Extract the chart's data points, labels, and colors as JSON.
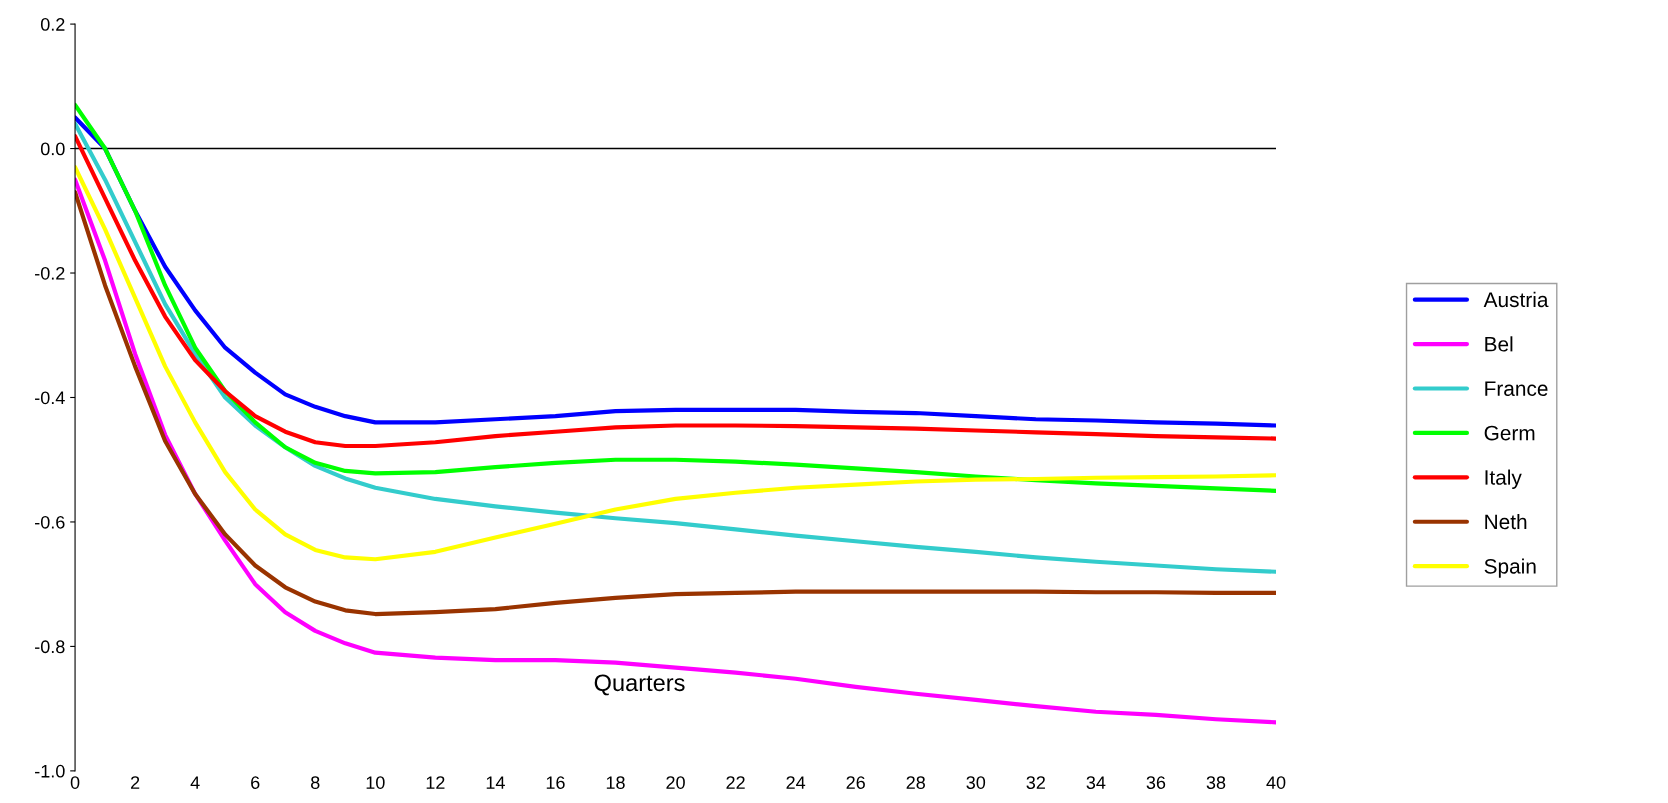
{
  "chart_data": {
    "type": "line",
    "xlabel": "Quarters",
    "x": [
      0,
      1,
      2,
      3,
      4,
      5,
      6,
      7,
      8,
      9,
      10,
      12,
      14,
      16,
      18,
      20,
      22,
      24,
      26,
      28,
      30,
      32,
      34,
      36,
      38,
      40
    ],
    "series": [
      {
        "name": "Austria",
        "color": "#0000ff",
        "values": [
          0.05,
          0.0,
          -0.1,
          -0.19,
          -0.26,
          -0.32,
          -0.36,
          -0.395,
          -0.415,
          -0.43,
          -0.44,
          -0.44,
          -0.435,
          -0.43,
          -0.422,
          -0.42,
          -0.42,
          -0.42,
          -0.423,
          -0.425,
          -0.43,
          -0.435,
          -0.437,
          -0.44,
          -0.442,
          -0.445
        ]
      },
      {
        "name": "Bel",
        "color": "#ff00ff",
        "values": [
          -0.05,
          -0.18,
          -0.33,
          -0.46,
          -0.555,
          -0.63,
          -0.7,
          -0.745,
          -0.775,
          -0.795,
          -0.81,
          -0.818,
          -0.822,
          -0.822,
          -0.826,
          -0.834,
          -0.842,
          -0.852,
          -0.865,
          -0.876,
          -0.886,
          -0.896,
          -0.905,
          -0.91,
          -0.917,
          -0.922
        ]
      },
      {
        "name": "France",
        "color": "#33cccc",
        "values": [
          0.04,
          -0.05,
          -0.15,
          -0.25,
          -0.33,
          -0.4,
          -0.445,
          -0.48,
          -0.51,
          -0.53,
          -0.545,
          -0.563,
          -0.575,
          -0.585,
          -0.594,
          -0.602,
          -0.612,
          -0.622,
          -0.631,
          -0.64,
          -0.648,
          -0.657,
          -0.664,
          -0.67,
          -0.676,
          -0.68
        ]
      },
      {
        "name": "Germ",
        "color": "#00ff00",
        "values": [
          0.07,
          0.0,
          -0.1,
          -0.22,
          -0.32,
          -0.39,
          -0.44,
          -0.48,
          -0.505,
          -0.518,
          -0.522,
          -0.52,
          -0.512,
          -0.505,
          -0.5,
          -0.5,
          -0.503,
          -0.508,
          -0.514,
          -0.52,
          -0.527,
          -0.533,
          -0.538,
          -0.542,
          -0.546,
          -0.55
        ]
      },
      {
        "name": "Italy",
        "color": "#ff0000",
        "values": [
          0.02,
          -0.08,
          -0.18,
          -0.27,
          -0.34,
          -0.39,
          -0.43,
          -0.455,
          -0.472,
          -0.478,
          -0.478,
          -0.472,
          -0.462,
          -0.455,
          -0.448,
          -0.445,
          -0.445,
          -0.446,
          -0.448,
          -0.45,
          -0.453,
          -0.456,
          -0.459,
          -0.462,
          -0.464,
          -0.466
        ]
      },
      {
        "name": "Neth",
        "color": "#993300",
        "values": [
          -0.07,
          -0.22,
          -0.35,
          -0.47,
          -0.555,
          -0.62,
          -0.67,
          -0.705,
          -0.728,
          -0.742,
          -0.748,
          -0.745,
          -0.74,
          -0.73,
          -0.722,
          -0.716,
          -0.714,
          -0.712,
          -0.712,
          -0.712,
          -0.712,
          -0.712,
          -0.713,
          -0.713,
          -0.714,
          -0.714
        ]
      },
      {
        "name": "Spain",
        "color": "#ffff00",
        "values": [
          -0.03,
          -0.13,
          -0.24,
          -0.35,
          -0.44,
          -0.52,
          -0.58,
          -0.62,
          -0.645,
          -0.657,
          -0.66,
          -0.648,
          -0.625,
          -0.603,
          -0.58,
          -0.563,
          -0.553,
          -0.545,
          -0.54,
          -0.535,
          -0.532,
          -0.531,
          -0.529,
          -0.528,
          -0.527,
          -0.525
        ]
      }
    ],
    "xlim": [
      0,
      40
    ],
    "xticks": [
      0,
      2,
      4,
      6,
      8,
      10,
      12,
      14,
      16,
      18,
      20,
      22,
      24,
      26,
      28,
      30,
      32,
      34,
      36,
      38,
      40
    ],
    "ylim": [
      -1.0,
      0.2
    ],
    "yticks": [
      {
        "value": -1.0,
        "label": "-1.0"
      },
      {
        "value": -0.8,
        "label": "-0.8"
      },
      {
        "value": -0.6,
        "label": "-0.6"
      },
      {
        "value": -0.4,
        "label": "-0.4"
      },
      {
        "value": -0.2,
        "label": "-0.2"
      },
      {
        "value": 0,
        "label": "0.0"
      },
      {
        "value": 0.2,
        "label": "0.2"
      }
    ],
    "ref_lines": [
      {
        "axis": "y",
        "value": 0,
        "color": "#000000"
      }
    ],
    "grid": false,
    "legend": "right",
    "marker": "none",
    "line_style": "solid"
  }
}
